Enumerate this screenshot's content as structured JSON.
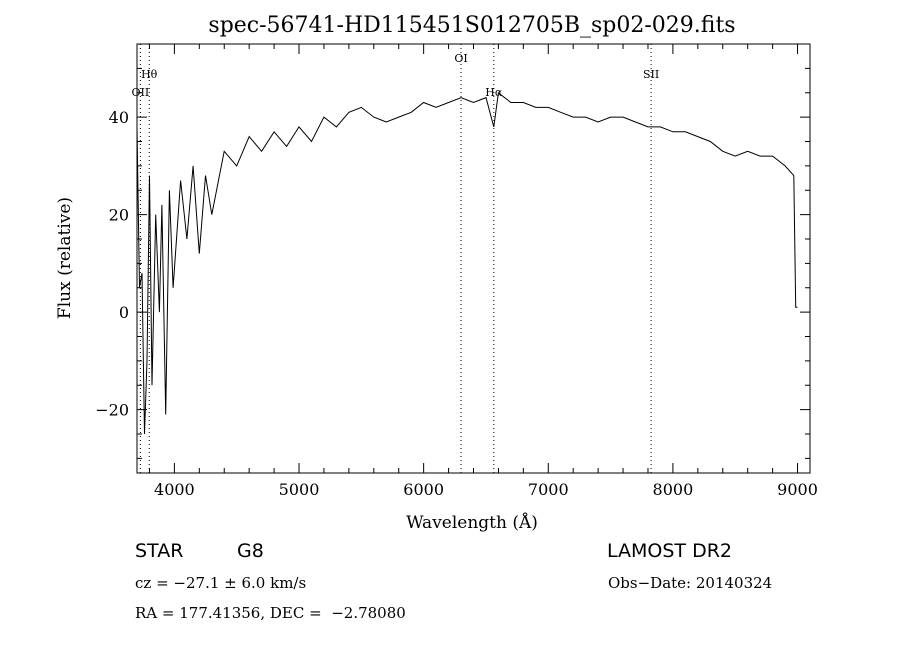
{
  "chart_data": {
    "type": "line",
    "title": "spec-56741-HD115451S012705B_sp02-029.fits",
    "xlabel": "Wavelength (Å)",
    "ylabel": "Flux (relative)",
    "xlim": [
      3700,
      9100
    ],
    "ylim": [
      -33,
      55
    ],
    "xticks": [
      4000,
      5000,
      6000,
      7000,
      8000,
      9000
    ],
    "yticks": [
      -20,
      0,
      20,
      40
    ],
    "xtick_labels": [
      "4000",
      "5000",
      "6000",
      "7000",
      "8000",
      "9000"
    ],
    "ytick_labels": [
      "−20",
      "0",
      "20",
      "40"
    ],
    "grid": false,
    "series": [
      {
        "x": [
          3700,
          3720,
          3740,
          3760,
          3780,
          3800,
          3820,
          3850,
          3880,
          3900,
          3930,
          3960,
          3990,
          4050,
          4100,
          4150,
          4200,
          4250,
          4300,
          4400,
          4500,
          4600,
          4700,
          4800,
          4900,
          5000,
          5100,
          5200,
          5300,
          5400,
          5500,
          5600,
          5700,
          5800,
          5900,
          6000,
          6100,
          6200,
          6300,
          6400,
          6500,
          6563,
          6600,
          6700,
          6800,
          6900,
          7000,
          7100,
          7200,
          7300,
          7400,
          7500,
          7600,
          7700,
          7800,
          7900,
          8000,
          8100,
          8200,
          8300,
          8400,
          8500,
          8600,
          8700,
          8800,
          8900,
          8970,
          8985,
          9000
        ],
        "y": [
          38,
          5,
          8,
          -25,
          -10,
          28,
          -15,
          20,
          0,
          22,
          -21,
          25,
          5,
          27,
          15,
          30,
          12,
          28,
          20,
          33,
          30,
          36,
          33,
          37,
          34,
          38,
          35,
          40,
          38,
          41,
          42,
          40,
          39,
          40,
          41,
          43,
          42,
          43,
          44,
          43,
          44,
          38,
          45,
          43,
          43,
          42,
          42,
          41,
          40,
          40,
          39,
          40,
          40,
          39,
          38,
          38,
          37,
          37,
          36,
          35,
          33,
          32,
          33,
          32,
          32,
          30,
          28,
          1,
          1
        ]
      }
    ],
    "line_markers": [
      {
        "label": "OII",
        "x": 3727
      },
      {
        "label": "Hθ",
        "x": 3798
      },
      {
        "label": "OI",
        "x": 6300
      },
      {
        "label": "Hα",
        "x": 6563
      },
      {
        "label": "SII",
        "x": 7825
      }
    ]
  },
  "info": {
    "class_label": "STAR",
    "subclass_label": "G8",
    "survey_label": "LAMOST DR2",
    "cz_text": "cz = −27.1 ± 6.0 km/s",
    "obs_date_text": "Obs−Date: 20140324",
    "coords_text": "RA = 177.41356, DEC =  −2.78080"
  }
}
